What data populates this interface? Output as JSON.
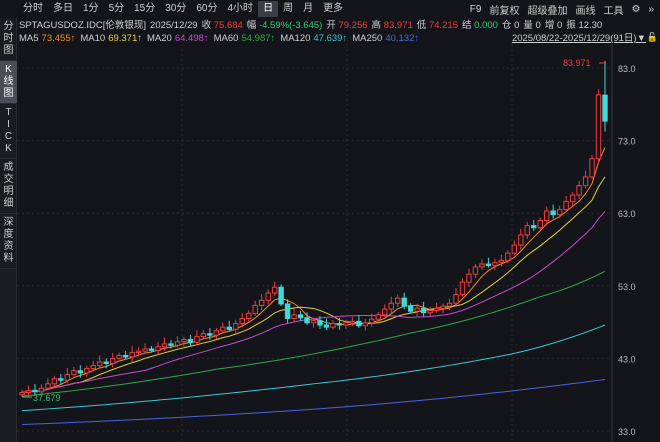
{
  "toolbar": {
    "tabs": [
      "分时",
      "多日",
      "1分",
      "5分",
      "15分",
      "30分",
      "60分",
      "4小时",
      "日",
      "周",
      "月",
      "更多"
    ],
    "active_tab": "日",
    "tools": [
      "F9",
      "前复权",
      "超级叠加",
      "画线",
      "工具"
    ],
    "gear_icon": "gear-icon",
    "expand_icon": "double-chevron-right-icon"
  },
  "info": {
    "symbol": "SPTAGUSDOZ.IDC[伦敦银现]",
    "date": "2025/12/29",
    "close_label": "收",
    "close": "75.684",
    "change_label": "幅",
    "change": "-4.59%(-3.645)",
    "open_label": "开",
    "open": "79.256",
    "high_label": "高",
    "high": "83.971",
    "low_label": "低",
    "low": "74.215",
    "settle_label": "结",
    "settle": "0.000",
    "oi_label": "仓",
    "oi": "0",
    "vol_label": "量",
    "vol": "0",
    "inc_label": "增",
    "inc": "0",
    "amp_label": "振",
    "amp": "12.30"
  },
  "ma": [
    {
      "label": "MA5",
      "value": "73.455↑",
      "color": "#f08c28"
    },
    {
      "label": "MA10",
      "value": "69.371↑",
      "color": "#e6d23c"
    },
    {
      "label": "MA20",
      "value": "64.498↑",
      "color": "#c84bc8"
    },
    {
      "label": "MA60",
      "value": "54.987↑",
      "color": "#2ea84b"
    },
    {
      "label": "MA120",
      "value": "47.639↑",
      "color": "#3cc8d2"
    },
    {
      "label": "MA250",
      "value": "40.132↑",
      "color": "#4a64e0"
    }
  ],
  "range": "2025/08/22-2025/12/29(91日)▼",
  "sidebar": [
    "分时图",
    "K线图",
    "TICK",
    "成交明细",
    "深度资料"
  ],
  "sidebar_active": "K线图",
  "chart_data": {
    "type": "candlestick",
    "candles": 91,
    "y_ticks": [
      "83.0",
      "73.0",
      "63.0",
      "53.0",
      "43.0",
      "33.0"
    ],
    "ylim": [
      33,
      83
    ],
    "grid": true,
    "up_color": "#f03c3c",
    "down_color": "#40d8d8",
    "max_label": "83.971",
    "min_label": "37.679",
    "closes": [
      38.3,
      38.6,
      38.4,
      38.9,
      39.5,
      40.2,
      40.0,
      40.8,
      41.3,
      41.0,
      41.6,
      42.0,
      42.5,
      42.3,
      43.0,
      43.4,
      43.2,
      43.8,
      44.0,
      44.3,
      44.1,
      44.6,
      45.0,
      44.8,
      45.3,
      45.6,
      45.2,
      46.0,
      46.4,
      46.2,
      46.8,
      47.3,
      47.0,
      47.8,
      48.5,
      49.2,
      50.3,
      51.0,
      52.0,
      52.8,
      50.5,
      48.5,
      49.0,
      48.6,
      47.9,
      48.2,
      47.6,
      47.3,
      47.8,
      47.6,
      47.9,
      48.1,
      47.5,
      47.9,
      48.4,
      49.0,
      49.8,
      50.6,
      51.3,
      50.2,
      49.5,
      49.9,
      49.3,
      49.6,
      49.9,
      50.2,
      50.6,
      51.8,
      53.5,
      54.6,
      55.6,
      56.0,
      55.8,
      56.2,
      56.5,
      57.5,
      58.6,
      60.0,
      61.3,
      61.0,
      62.0,
      63.3,
      62.8,
      63.5,
      64.6,
      65.5,
      66.8,
      68.0,
      70.5,
      79.3,
      75.684
    ],
    "last_candle": {
      "open": 79.256,
      "high": 83.971,
      "low": 74.215,
      "close": 75.684
    },
    "ma60_anchors": [
      [
        0,
        37.8
      ],
      [
        30,
        41.5
      ],
      [
        60,
        46.5
      ],
      [
        80,
        51.5
      ],
      [
        90,
        55.0
      ]
    ],
    "ma120_anchors": [
      [
        0,
        35.8
      ],
      [
        45,
        39.5
      ],
      [
        75,
        43.5
      ],
      [
        90,
        47.6
      ]
    ],
    "ma250_anchors": [
      [
        0,
        33.9
      ],
      [
        45,
        36.0
      ],
      [
        90,
        40.1
      ]
    ]
  }
}
